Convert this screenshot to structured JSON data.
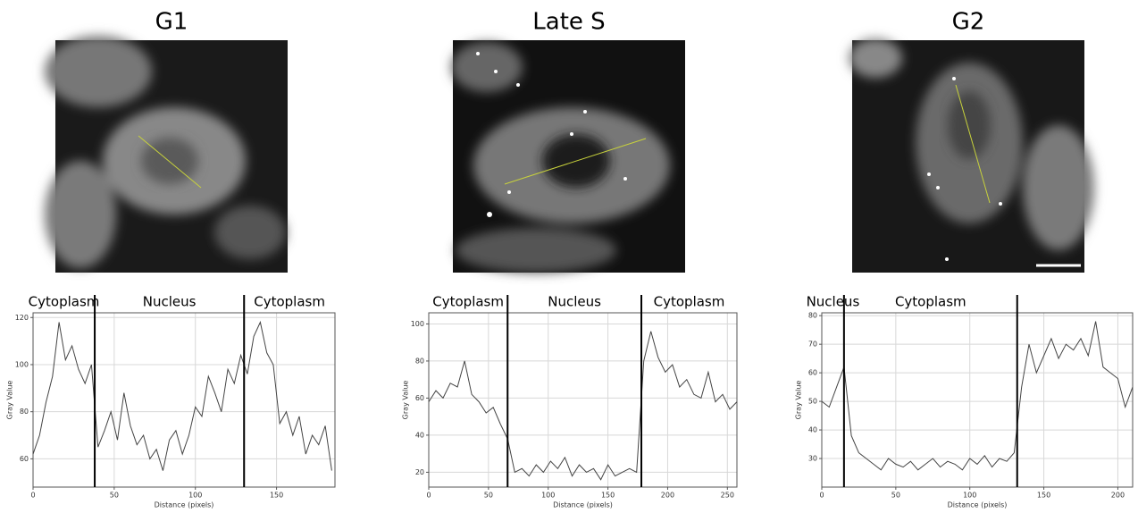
{
  "chart_data": [
    {
      "type": "line",
      "title": "G1",
      "xlabel": "Distance (pixels)",
      "ylabel": "Gray Value",
      "x": [
        0,
        4,
        8,
        12,
        16,
        20,
        24,
        28,
        32,
        36,
        40,
        44,
        48,
        52,
        56,
        60,
        64,
        68,
        72,
        76,
        80,
        84,
        88,
        92,
        96,
        100,
        104,
        108,
        112,
        116,
        120,
        124,
        128,
        132,
        136,
        140,
        144,
        148,
        152,
        156,
        160,
        164,
        168,
        172,
        176,
        180,
        184
      ],
      "values": [
        62,
        70,
        84,
        95,
        118,
        102,
        108,
        98,
        92,
        100,
        65,
        72,
        80,
        68,
        88,
        74,
        66,
        70,
        60,
        64,
        55,
        68,
        72,
        62,
        70,
        82,
        78,
        95,
        88,
        80,
        98,
        92,
        104,
        96,
        112,
        118,
        105,
        100,
        75,
        80,
        70,
        78,
        62,
        70,
        66,
        74,
        55
      ],
      "color": "#444444",
      "xlim": [
        0,
        186
      ],
      "xticks": [
        0,
        50,
        100,
        150
      ],
      "ylim": [
        48,
        122
      ],
      "yticks": [
        60,
        80,
        100,
        120
      ],
      "grid": true,
      "regions": [
        "Cytoplasm",
        "Nucleus",
        "Cytoplasm"
      ],
      "boundaries": [
        38,
        130
      ]
    },
    {
      "type": "line",
      "title": "Late S",
      "xlabel": "Distance (pixels)",
      "ylabel": "Gray Value",
      "x": [
        0,
        6,
        12,
        18,
        24,
        30,
        36,
        42,
        48,
        54,
        60,
        66,
        72,
        78,
        84,
        90,
        96,
        102,
        108,
        114,
        120,
        126,
        132,
        138,
        144,
        150,
        156,
        162,
        168,
        174,
        180,
        186,
        192,
        198,
        204,
        210,
        216,
        222,
        228,
        234,
        240,
        246,
        252,
        258
      ],
      "values": [
        58,
        64,
        60,
        68,
        66,
        80,
        62,
        58,
        52,
        55,
        46,
        38,
        20,
        22,
        18,
        24,
        20,
        26,
        22,
        28,
        18,
        24,
        20,
        22,
        16,
        24,
        18,
        20,
        22,
        20,
        80,
        96,
        82,
        74,
        78,
        66,
        70,
        62,
        60,
        74,
        58,
        62,
        54,
        58
      ],
      "color": "#444444",
      "xlim": [
        0,
        258
      ],
      "xticks": [
        0,
        50,
        100,
        150,
        200,
        250
      ],
      "ylim": [
        12,
        106
      ],
      "yticks": [
        20,
        40,
        60,
        80,
        100
      ],
      "grid": true,
      "regions": [
        "Cytoplasm",
        "Nucleus",
        "Cytoplasm"
      ],
      "boundaries": [
        66,
        178
      ]
    },
    {
      "type": "line",
      "title": "G2",
      "xlabel": "Distance (pixels)",
      "ylabel": "Gray Value",
      "x": [
        0,
        5,
        10,
        15,
        20,
        25,
        30,
        35,
        40,
        45,
        50,
        55,
        60,
        65,
        70,
        75,
        80,
        85,
        90,
        95,
        100,
        105,
        110,
        115,
        120,
        125,
        130,
        135,
        140,
        145,
        150,
        155,
        160,
        165,
        170,
        175,
        180,
        185,
        190,
        195,
        200,
        205,
        210
      ],
      "values": [
        50,
        48,
        55,
        62,
        38,
        32,
        30,
        28,
        26,
        30,
        28,
        27,
        29,
        26,
        28,
        30,
        27,
        29,
        28,
        26,
        30,
        28,
        31,
        27,
        30,
        29,
        32,
        55,
        70,
        60,
        66,
        72,
        65,
        70,
        68,
        72,
        66,
        78,
        62,
        60,
        58,
        48,
        55
      ],
      "color": "#444444",
      "xlim": [
        0,
        210
      ],
      "xticks": [
        0,
        50,
        100,
        150,
        200
      ],
      "ylim": [
        20,
        81
      ],
      "yticks": [
        30,
        40,
        50,
        60,
        70,
        80
      ],
      "grid": true,
      "regions": [
        "Nucleus",
        "Cytoplasm"
      ],
      "boundaries": [
        15,
        132
      ]
    }
  ]
}
